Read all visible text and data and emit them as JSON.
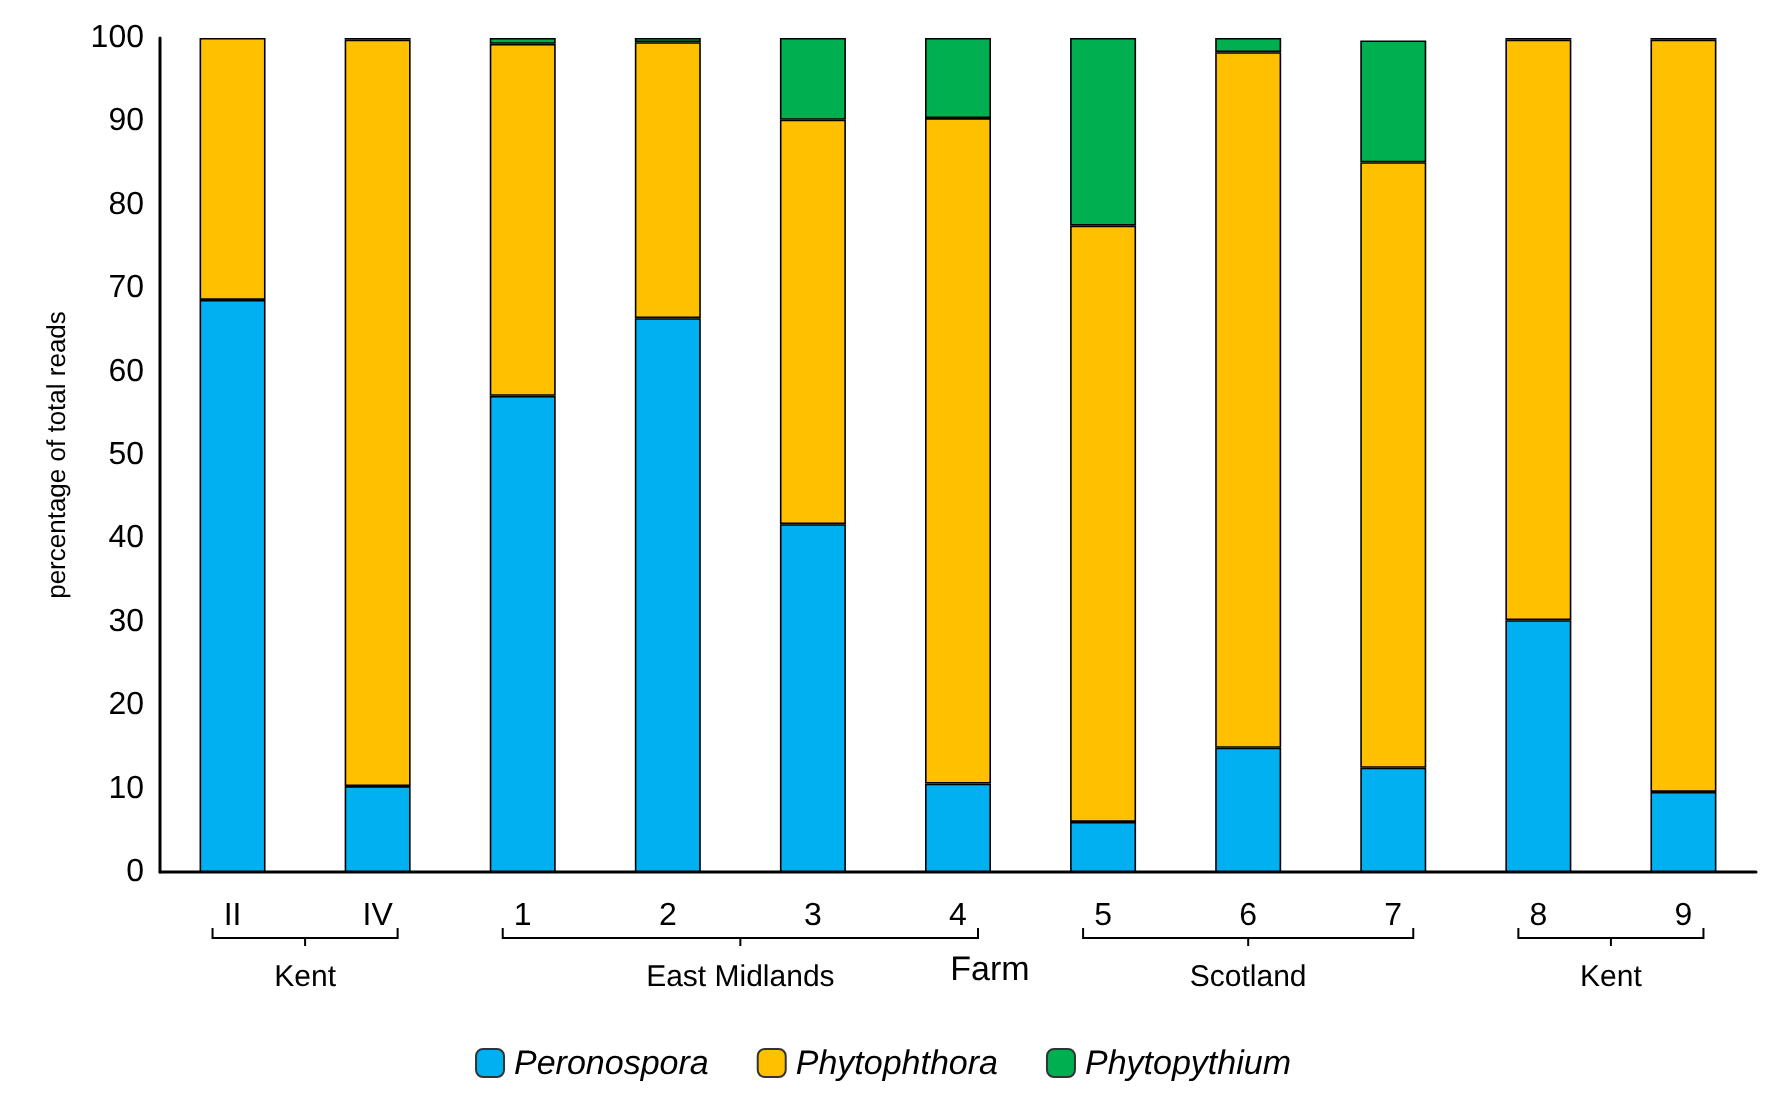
{
  "chart_data": {
    "type": "bar",
    "stacked": true,
    "xlabel": "Farm",
    "ylabel": "percentage of total reads",
    "categories": [
      "II",
      "IV",
      "1",
      "2",
      "3",
      "4",
      "5",
      "6",
      "7",
      "8",
      "9"
    ],
    "series": [
      {
        "name": "Peronospora",
        "color": "#00b0f0",
        "values": [
          68.6,
          10.3,
          57.1,
          66.4,
          41.7,
          10.6,
          6.0,
          14.9,
          12.5,
          30.2,
          9.6
        ]
      },
      {
        "name": "Phytophthora",
        "color": "#ffc000",
        "values": [
          31.4,
          89.5,
          42.2,
          33.1,
          48.5,
          79.8,
          71.5,
          83.4,
          72.6,
          69.6,
          90.2
        ]
      },
      {
        "name": "Phytopythium",
        "color": "#00b050",
        "values": [
          0,
          0.2,
          0.7,
          0.5,
          9.8,
          9.6,
          22.5,
          1.7,
          14.6,
          0.2,
          0.2
        ]
      }
    ],
    "annotations": [
      "Kent",
      "East Midlands",
      "Scotland",
      "Kent"
    ],
    "ylim": [
      0,
      100
    ],
    "yticks": [
      0,
      10,
      20,
      30,
      40,
      50,
      60,
      70,
      80,
      90,
      100
    ],
    "grid": false,
    "legend": "bottom"
  }
}
